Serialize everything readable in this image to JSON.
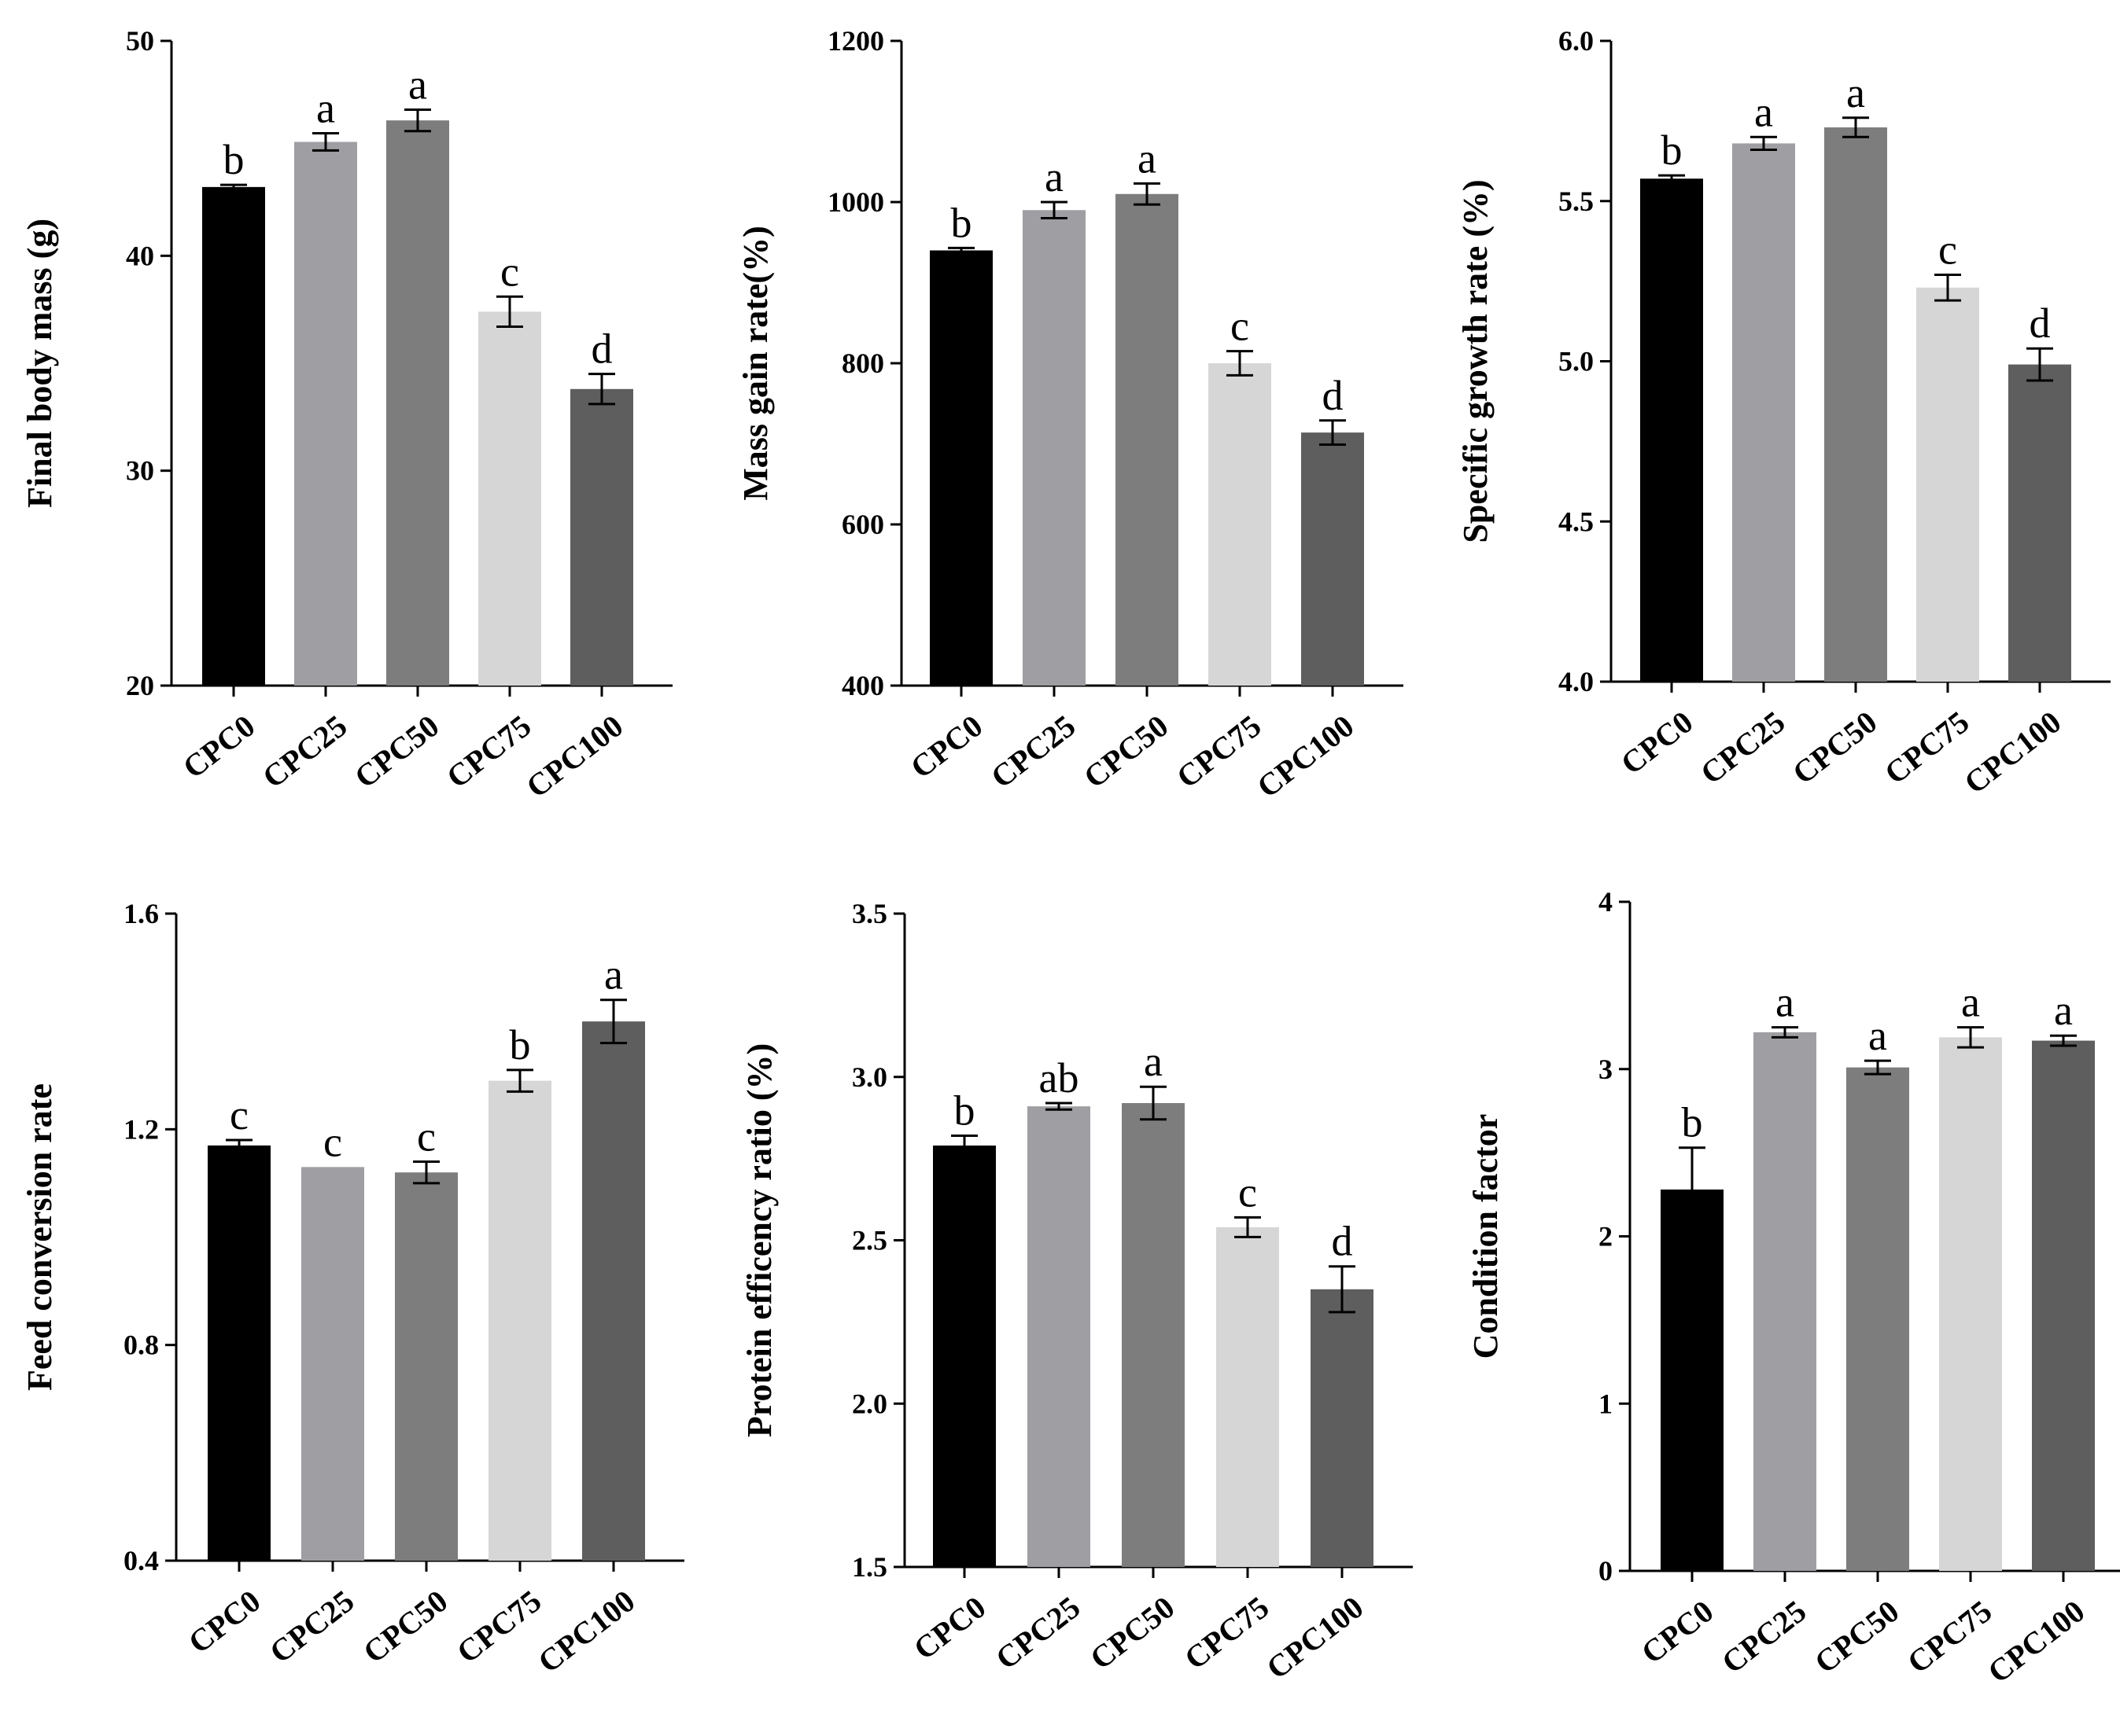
{
  "categories": [
    "CPC0",
    "CPC25",
    "CPC50",
    "CPC75",
    "CPC100"
  ],
  "bar_colors": [
    "#000000",
    "#9e9ea3",
    "#7d7d7d",
    "#d6d6d6",
    "#5e5e5e"
  ],
  "chart_data": [
    {
      "type": "bar",
      "ylabel": "Final body mass (g)",
      "ylim": [
        20,
        50
      ],
      "yticks": [
        "20",
        "30",
        "40",
        "50"
      ],
      "categories": [
        "CPC0",
        "CPC25",
        "CPC50",
        "CPC75",
        "CPC100"
      ],
      "values": [
        43.2,
        45.3,
        46.3,
        37.4,
        33.8
      ],
      "errors": [
        0.1,
        0.4,
        0.5,
        0.7,
        0.7
      ],
      "letters": [
        "b",
        "a",
        "a",
        "c",
        "d"
      ]
    },
    {
      "type": "bar",
      "ylabel": "Mass gain rate(%)",
      "ylim": [
        400,
        1200
      ],
      "yticks": [
        "400",
        "600",
        "800",
        "1000",
        "1200"
      ],
      "categories": [
        "CPC0",
        "CPC25",
        "CPC50",
        "CPC75",
        "CPC100"
      ],
      "values": [
        940,
        990,
        1010,
        800,
        714
      ],
      "errors": [
        3,
        10,
        13,
        15,
        15
      ],
      "letters": [
        "b",
        "a",
        "a",
        "c",
        "d"
      ]
    },
    {
      "type": "bar",
      "ylabel": "Specific growth rate (%)",
      "ylim": [
        4.0,
        6.0
      ],
      "yticks": [
        "4.0",
        "4.5",
        "5.0",
        "5.5",
        "6.0"
      ],
      "categories": [
        "CPC0",
        "CPC25",
        "CPC50",
        "CPC75",
        "CPC100"
      ],
      "values": [
        5.57,
        5.68,
        5.73,
        5.23,
        4.99
      ],
      "errors": [
        0.01,
        0.02,
        0.03,
        0.04,
        0.05
      ],
      "letters": [
        "b",
        "a",
        "a",
        "c",
        "d"
      ]
    },
    {
      "type": "bar",
      "ylabel": "Feed conversion rate",
      "ylim": [
        0.4,
        1.6
      ],
      "yticks": [
        "0.4",
        "0.8",
        "1.2",
        "1.6"
      ],
      "categories": [
        "CPC0",
        "CPC25",
        "CPC50",
        "CPC75",
        "CPC100"
      ],
      "values": [
        1.17,
        1.13,
        1.12,
        1.29,
        1.4
      ],
      "errors": [
        0.01,
        0.0,
        0.02,
        0.02,
        0.04
      ],
      "letters": [
        "c",
        "c",
        "c",
        "b",
        "a"
      ]
    },
    {
      "type": "bar",
      "ylabel": "Protein efficency ratio (%)",
      "ylim": [
        1.5,
        3.5
      ],
      "yticks": [
        "1.5",
        "2.0",
        "2.5",
        "3.0",
        "3.5"
      ],
      "categories": [
        "CPC0",
        "CPC25",
        "CPC50",
        "CPC75",
        "CPC100"
      ],
      "values": [
        2.79,
        2.91,
        2.92,
        2.54,
        2.35
      ],
      "errors": [
        0.03,
        0.01,
        0.05,
        0.03,
        0.07
      ],
      "letters": [
        "b",
        "ab",
        "a",
        "c",
        "d"
      ]
    },
    {
      "type": "bar",
      "ylabel": "Condition factor",
      "ylim": [
        0,
        4
      ],
      "yticks": [
        "0",
        "1",
        "2",
        "3",
        "4"
      ],
      "categories": [
        "CPC0",
        "CPC25",
        "CPC50",
        "CPC75",
        "CPC100"
      ],
      "values": [
        2.28,
        3.22,
        3.01,
        3.19,
        3.17
      ],
      "errors": [
        0.25,
        0.03,
        0.04,
        0.06,
        0.03
      ],
      "letters": [
        "b",
        "a",
        "a",
        "a",
        "a"
      ]
    }
  ]
}
